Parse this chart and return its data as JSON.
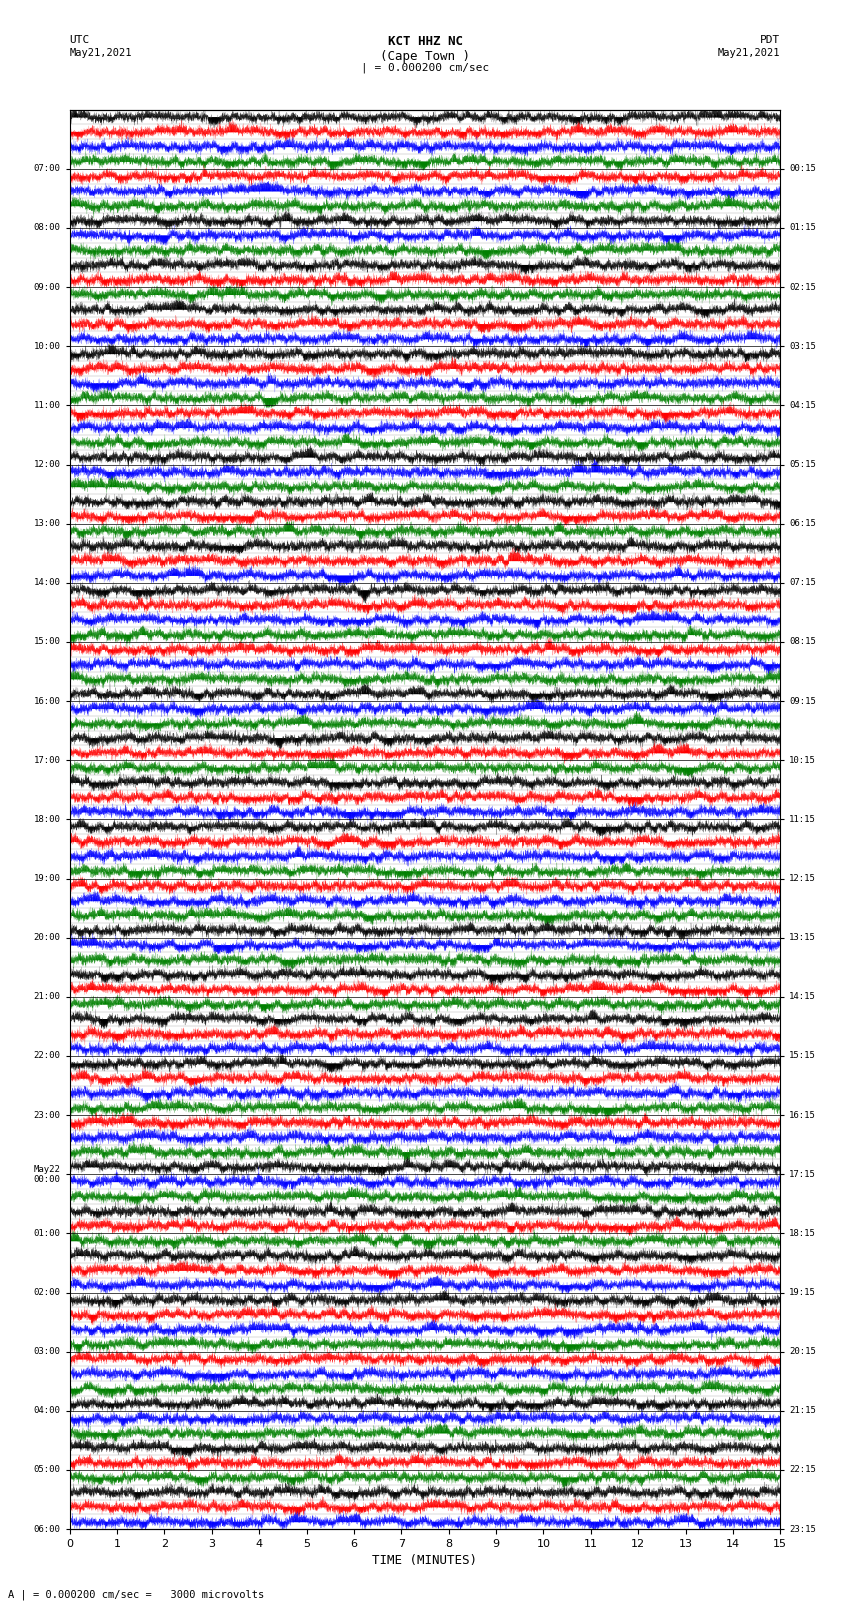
{
  "title_line1": "KCT HHZ NC",
  "title_line2": "(Cape Town )",
  "title_line3": "| = 0.000200 cm/sec",
  "label_utc": "UTC",
  "label_pdt": "PDT",
  "date_left": "May21,2021",
  "date_right": "May21,2021",
  "bottom_label": "A | = 0.000200 cm/sec =   3000 microvolts",
  "xlabel": "TIME (MINUTES)",
  "left_times": [
    "07:00",
    "08:00",
    "09:00",
    "10:00",
    "11:00",
    "12:00",
    "13:00",
    "14:00",
    "15:00",
    "16:00",
    "17:00",
    "18:00",
    "19:00",
    "20:00",
    "21:00",
    "22:00",
    "23:00",
    "May22\n00:00",
    "01:00",
    "02:00",
    "03:00",
    "04:00",
    "05:00",
    "06:00"
  ],
  "right_times": [
    "00:15",
    "01:15",
    "02:15",
    "03:15",
    "04:15",
    "05:15",
    "06:15",
    "07:15",
    "08:15",
    "09:15",
    "10:15",
    "11:15",
    "12:15",
    "13:15",
    "14:15",
    "15:15",
    "16:15",
    "17:15",
    "18:15",
    "19:15",
    "20:15",
    "21:15",
    "22:15",
    "23:15"
  ],
  "num_rows": 24,
  "minutes_per_row": 15,
  "row_colors": [
    "red",
    "blue",
    "green",
    "black",
    "red",
    "blue",
    "green",
    "black",
    "red",
    "blue",
    "green",
    "black",
    "red",
    "blue",
    "green",
    "black",
    "red",
    "blue",
    "green",
    "black",
    "red",
    "blue",
    "green",
    "black"
  ],
  "sub_colors": [
    [
      "black",
      "red",
      "blue",
      "green"
    ],
    [
      "red",
      "blue",
      "green",
      "black"
    ],
    [
      "blue",
      "green",
      "black",
      "red"
    ],
    [
      "green",
      "black",
      "red",
      "blue"
    ],
    [
      "black",
      "red",
      "blue",
      "green"
    ],
    [
      "red",
      "blue",
      "green",
      "black"
    ],
    [
      "blue",
      "green",
      "black",
      "red"
    ],
    [
      "green",
      "black",
      "red",
      "blue"
    ],
    [
      "black",
      "red",
      "blue",
      "green"
    ],
    [
      "red",
      "blue",
      "green",
      "black"
    ],
    [
      "blue",
      "green",
      "black",
      "red"
    ],
    [
      "green",
      "black",
      "red",
      "blue"
    ],
    [
      "black",
      "red",
      "blue",
      "green"
    ],
    [
      "red",
      "blue",
      "green",
      "black"
    ],
    [
      "blue",
      "green",
      "black",
      "red"
    ],
    [
      "green",
      "black",
      "red",
      "blue"
    ],
    [
      "black",
      "red",
      "blue",
      "green"
    ],
    [
      "red",
      "blue",
      "green",
      "black"
    ],
    [
      "blue",
      "green",
      "black",
      "red"
    ],
    [
      "green",
      "black",
      "red",
      "blue"
    ],
    [
      "black",
      "red",
      "blue",
      "green"
    ],
    [
      "red",
      "blue",
      "green",
      "black"
    ],
    [
      "blue",
      "green",
      "black",
      "red"
    ],
    [
      "green",
      "black",
      "red",
      "blue"
    ]
  ],
  "background": "white",
  "fig_width": 8.5,
  "fig_height": 16.13,
  "dpi": 100
}
